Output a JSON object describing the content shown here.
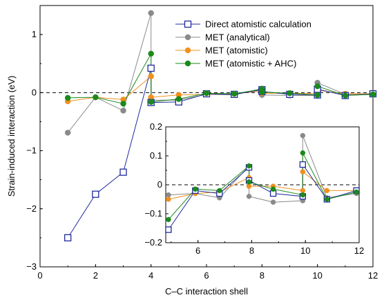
{
  "chart_data": [
    {
      "type": "line",
      "xlabel": "C–C interaction shell",
      "ylabel": "Strain-induced interaction (eV)",
      "xlim": [
        0,
        12
      ],
      "ylim": [
        -3,
        1.5
      ],
      "xticks": [
        "0",
        "2",
        "4",
        "6",
        "8",
        "10",
        "12"
      ],
      "yticks": [
        "−3",
        "−2",
        "−1",
        "0",
        "1"
      ],
      "zero_line": "dashed",
      "legend_position": "top-right",
      "series": [
        {
          "name": "Direct atomistic calculation",
          "color": "#1f2a9c",
          "marker": "open-square",
          "points": [
            [
              1,
              -2.5
            ],
            [
              2,
              -1.75
            ],
            [
              3,
              -1.37
            ],
            [
              4,
              0.42
            ],
            [
              4,
              -0.17
            ],
            [
              5,
              -0.16
            ],
            [
              6,
              -0.02
            ],
            [
              7,
              -0.03
            ],
            [
              8,
              0.05
            ],
            [
              8,
              0.02
            ],
            [
              9,
              -0.03
            ],
            [
              10,
              -0.04
            ],
            [
              10,
              0.06
            ],
            [
              11,
              -0.05
            ],
            [
              12,
              -0.02
            ]
          ]
        },
        {
          "name": "MET (analytical)",
          "color": "#8a8a8a",
          "marker": "filled-circle",
          "points": [
            [
              1,
              -0.69
            ],
            [
              2,
              -0.08
            ],
            [
              3,
              -0.31
            ],
            [
              4,
              1.37
            ],
            [
              4,
              -0.13
            ],
            [
              5,
              -0.13
            ],
            [
              6,
              -0.03
            ],
            [
              7,
              -0.04
            ],
            [
              8,
              0.07
            ],
            [
              8,
              -0.04
            ],
            [
              9,
              -0.05
            ],
            [
              10,
              -0.05
            ],
            [
              10,
              0.17
            ],
            [
              11,
              -0.03
            ],
            [
              12,
              -0.03
            ]
          ]
        },
        {
          "name": "MET (atomistic)",
          "color": "#f0901e",
          "marker": "filled-circle",
          "points": [
            [
              1,
              -0.15
            ],
            [
              2,
              -0.08
            ],
            [
              3,
              -0.12
            ],
            [
              4,
              0.28
            ],
            [
              4,
              -0.08
            ],
            [
              5,
              -0.04
            ],
            [
              6,
              -0.03
            ],
            [
              7,
              -0.02
            ],
            [
              8,
              0.03
            ],
            [
              8,
              -0.01
            ],
            [
              9,
              -0.01
            ],
            [
              10,
              -0.02
            ],
            [
              10,
              0.04
            ],
            [
              11,
              -0.02
            ],
            [
              12,
              -0.02
            ]
          ]
        },
        {
          "name": "MET (atomistic + AHC)",
          "color": "#1a8a1a",
          "marker": "filled-circle",
          "points": [
            [
              1,
              -0.09
            ],
            [
              2,
              -0.08
            ],
            [
              3,
              -0.19
            ],
            [
              4,
              0.67
            ],
            [
              4,
              -0.16
            ],
            [
              5,
              -0.11
            ],
            [
              6,
              -0.01
            ],
            [
              7,
              -0.02
            ],
            [
              8,
              0.06
            ],
            [
              8,
              0.01
            ],
            [
              9,
              -0.01
            ],
            [
              10,
              -0.04
            ],
            [
              10,
              0.11
            ],
            [
              11,
              -0.05
            ],
            [
              12,
              -0.03
            ]
          ]
        }
      ]
    },
    {
      "type": "line",
      "inset": true,
      "xlim": [
        4.8,
        12
      ],
      "ylim": [
        -0.2,
        0.2
      ],
      "xticks": [
        "6",
        "8",
        "10",
        "12"
      ],
      "yticks": [
        "−0.2",
        "−0.1",
        "0",
        "0.1",
        "0.2"
      ],
      "zero_line": "dashed",
      "series": [
        {
          "name": "Direct atomistic calculation",
          "color": "#1f2a9c",
          "marker": "open-square",
          "points": [
            [
              4.9,
              -0.155
            ],
            [
              5.9,
              -0.02
            ],
            [
              6.8,
              -0.03
            ],
            [
              7.9,
              0.06
            ],
            [
              7.9,
              0.015
            ],
            [
              8.8,
              -0.03
            ],
            [
              9.9,
              -0.04
            ],
            [
              9.9,
              0.07
            ],
            [
              10.8,
              -0.05
            ],
            [
              11.9,
              -0.02
            ]
          ]
        },
        {
          "name": "MET (analytical)",
          "color": "#8a8a8a",
          "marker": "filled-circle",
          "points": [
            [
              4.9,
              -0.035
            ],
            [
              5.9,
              -0.03
            ],
            [
              6.8,
              -0.045
            ],
            [
              7.9,
              0.065
            ],
            [
              7.9,
              -0.04
            ],
            [
              8.8,
              -0.06
            ],
            [
              9.9,
              -0.055
            ],
            [
              9.9,
              0.17
            ],
            [
              10.8,
              -0.045
            ],
            [
              11.9,
              -0.03
            ]
          ]
        },
        {
          "name": "MET (atomistic)",
          "color": "#f0901e",
          "marker": "filled-circle",
          "points": [
            [
              4.9,
              -0.05
            ],
            [
              5.9,
              -0.03
            ],
            [
              6.8,
              -0.025
            ],
            [
              7.9,
              0.025
            ],
            [
              7.9,
              -0.005
            ],
            [
              8.8,
              -0.005
            ],
            [
              9.9,
              -0.02
            ],
            [
              9.9,
              0.045
            ],
            [
              10.8,
              -0.02
            ],
            [
              11.9,
              -0.02
            ]
          ]
        },
        {
          "name": "MET (atomistic + AHC)",
          "color": "#1a8a1a",
          "marker": "filled-circle",
          "points": [
            [
              4.9,
              -0.12
            ],
            [
              5.9,
              -0.015
            ],
            [
              6.8,
              -0.02
            ],
            [
              7.9,
              0.065
            ],
            [
              7.9,
              0.01
            ],
            [
              8.8,
              -0.015
            ],
            [
              9.9,
              -0.035
            ],
            [
              9.9,
              0.11
            ],
            [
              10.8,
              -0.05
            ],
            [
              11.9,
              -0.025
            ]
          ]
        }
      ]
    }
  ]
}
